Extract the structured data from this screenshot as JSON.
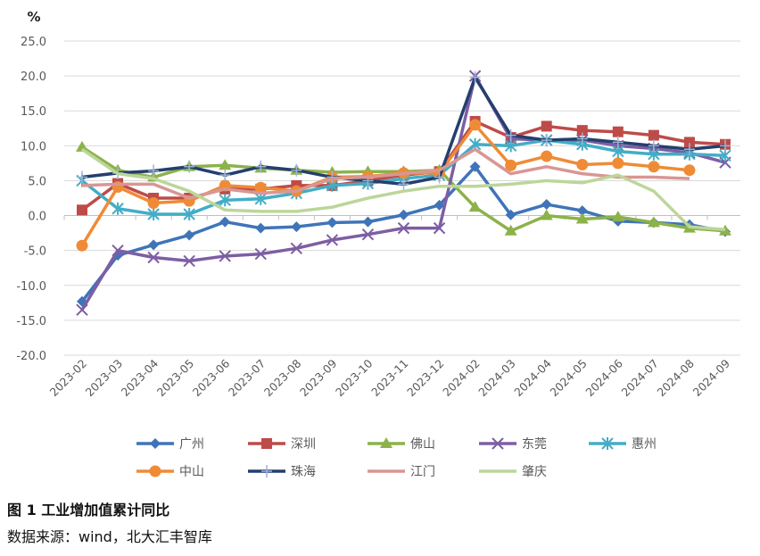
{
  "chart_data": {
    "type": "line",
    "title": "",
    "ylabel": "%",
    "xlabel": "",
    "ylim": [
      -20,
      25
    ],
    "yticks": [
      "-20.0",
      "-15.0",
      "-10.0",
      "-5.0",
      "0.0",
      "5.0",
      "10.0",
      "15.0",
      "20.0",
      "25.0"
    ],
    "grid": true,
    "legend_placement": "bottom",
    "categories": [
      "2023-02",
      "2023-03",
      "2023-04",
      "2023-05",
      "2023-06",
      "2023-07",
      "2023-08",
      "2023-09",
      "2023-10",
      "2023-11",
      "2023-12",
      "2024-02",
      "2024-03",
      "2024-04",
      "2024-05",
      "2024-06",
      "2024-07",
      "2024-08",
      "2024-09"
    ],
    "series": [
      {
        "name": "广州",
        "color": "#3f74b9",
        "marker": "diamond",
        "values": [
          -12.3,
          -5.7,
          -4.2,
          -2.8,
          -0.9,
          -1.8,
          -1.6,
          -1.0,
          -0.9,
          0.1,
          1.5,
          7.0,
          0.1,
          1.6,
          0.7,
          -0.8,
          -1.0,
          -1.3,
          -2.3
        ]
      },
      {
        "name": "深圳",
        "color": "#be4b48",
        "marker": "square",
        "values": [
          0.8,
          4.6,
          2.5,
          2.5,
          3.8,
          3.8,
          4.3,
          4.3,
          5.0,
          5.8,
          6.3,
          13.5,
          11.2,
          12.8,
          12.2,
          12.0,
          11.5,
          10.5,
          10.2
        ]
      },
      {
        "name": "佛山",
        "color": "#8cb24a",
        "marker": "triangle",
        "values": [
          9.8,
          6.5,
          5.5,
          7.0,
          7.2,
          6.8,
          6.5,
          6.2,
          6.3,
          6.3,
          6.5,
          1.2,
          -2.2,
          0.0,
          -0.5,
          -0.2,
          -1.0,
          -1.8,
          -2.2
        ]
      },
      {
        "name": "东莞",
        "color": "#7d5ea3",
        "marker": "x",
        "values": [
          -13.5,
          -5.0,
          -6.0,
          -6.5,
          -5.8,
          -5.5,
          -4.7,
          -3.5,
          -2.7,
          -1.8,
          -1.8,
          20.0,
          11.0,
          10.8,
          10.8,
          10.0,
          9.6,
          9.0,
          7.6
        ]
      },
      {
        "name": "惠州",
        "color": "#43adc6",
        "marker": "asterisk",
        "values": [
          5.0,
          1.0,
          0.2,
          0.2,
          2.2,
          2.4,
          3.2,
          4.3,
          4.6,
          5.3,
          5.8,
          10.2,
          10.0,
          10.8,
          10.2,
          9.2,
          8.8,
          8.8,
          8.6
        ]
      },
      {
        "name": "中山",
        "color": "#ef8b36",
        "marker": "circle",
        "values": [
          -4.3,
          4.1,
          1.8,
          2.1,
          4.3,
          4.0,
          3.5,
          5.5,
          5.6,
          6.1,
          6.1,
          13.0,
          7.2,
          8.5,
          7.3,
          7.5,
          7.0,
          6.5,
          null
        ]
      },
      {
        "name": "珠海",
        "color": "#243f6e",
        "marker": "plus",
        "values": [
          5.5,
          6.1,
          6.4,
          7.0,
          5.8,
          7.0,
          6.5,
          5.5,
          5.0,
          4.5,
          5.5,
          19.8,
          11.5,
          10.8,
          11.0,
          10.5,
          10.0,
          9.5,
          10.0
        ]
      },
      {
        "name": "江门",
        "color": "#d99694",
        "marker": "none",
        "values": [
          4.3,
          4.5,
          4.5,
          2.5,
          3.8,
          3.2,
          3.5,
          5.3,
          5.5,
          6.0,
          6.5,
          9.5,
          6.0,
          7.0,
          6.0,
          5.5,
          5.5,
          5.3,
          null
        ]
      },
      {
        "name": "肇庆",
        "color": "#bcd69a",
        "marker": "none",
        "values": [
          9.5,
          6.0,
          5.3,
          3.5,
          0.8,
          0.6,
          0.6,
          1.2,
          2.5,
          3.5,
          4.2,
          4.2,
          4.5,
          5.0,
          4.7,
          5.8,
          3.5,
          -1.6,
          -2.0
        ]
      }
    ]
  },
  "caption": {
    "figure": "图 1 工业增加值累计同比",
    "source": "数据来源：wind，北大汇丰智库"
  }
}
